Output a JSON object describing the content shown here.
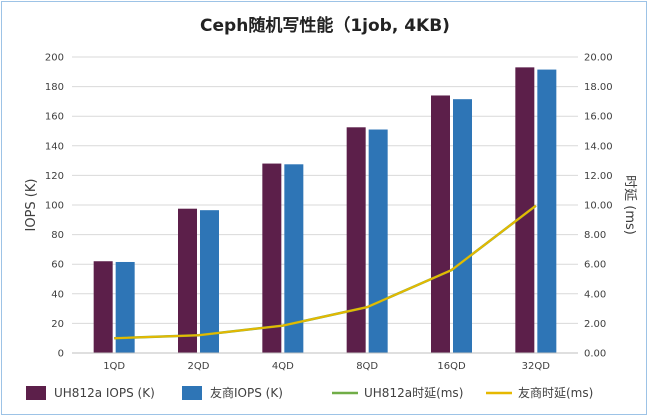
{
  "chart_data": {
    "type": "bar",
    "title": "Ceph随机写性能（1job, 4KB)",
    "ylabel": "IOPS (K)",
    "y2label": "时延 (ms)",
    "categories": [
      "1QD",
      "2QD",
      "4QD",
      "8QD",
      "16QD",
      "32QD"
    ],
    "ylim": [
      0,
      200
    ],
    "y2lim": [
      0,
      20
    ],
    "yticks": [
      "0",
      "20",
      "40",
      "60",
      "80",
      "100",
      "120",
      "140",
      "160",
      "180",
      "200"
    ],
    "y2ticks": [
      "0.00",
      "2.00",
      "4.00",
      "6.00",
      "8.00",
      "10.00",
      "12.00",
      "14.00",
      "16.00",
      "18.00",
      "20.00"
    ],
    "grid": true,
    "legend_position": "bottom",
    "bar_series": [
      {
        "name": "UH812a IOPS (K)",
        "color": "#5c1f4a",
        "values": [
          62,
          97.5,
          128,
          152.5,
          174,
          193
        ]
      },
      {
        "name": "友商IOPS (K)",
        "color": "#2e75b6",
        "values": [
          61.5,
          96.5,
          127.5,
          151,
          171.5,
          191.5
        ]
      }
    ],
    "line_series": [
      {
        "name": "UH812a时延(ms)",
        "color": "#70ad47",
        "values": [
          1.0,
          1.2,
          1.85,
          3.1,
          5.6,
          9.95
        ]
      },
      {
        "name": "友商时延(ms)",
        "color": "#e6b800",
        "values": [
          1.0,
          1.2,
          1.85,
          3.1,
          5.6,
          9.95
        ]
      }
    ]
  }
}
